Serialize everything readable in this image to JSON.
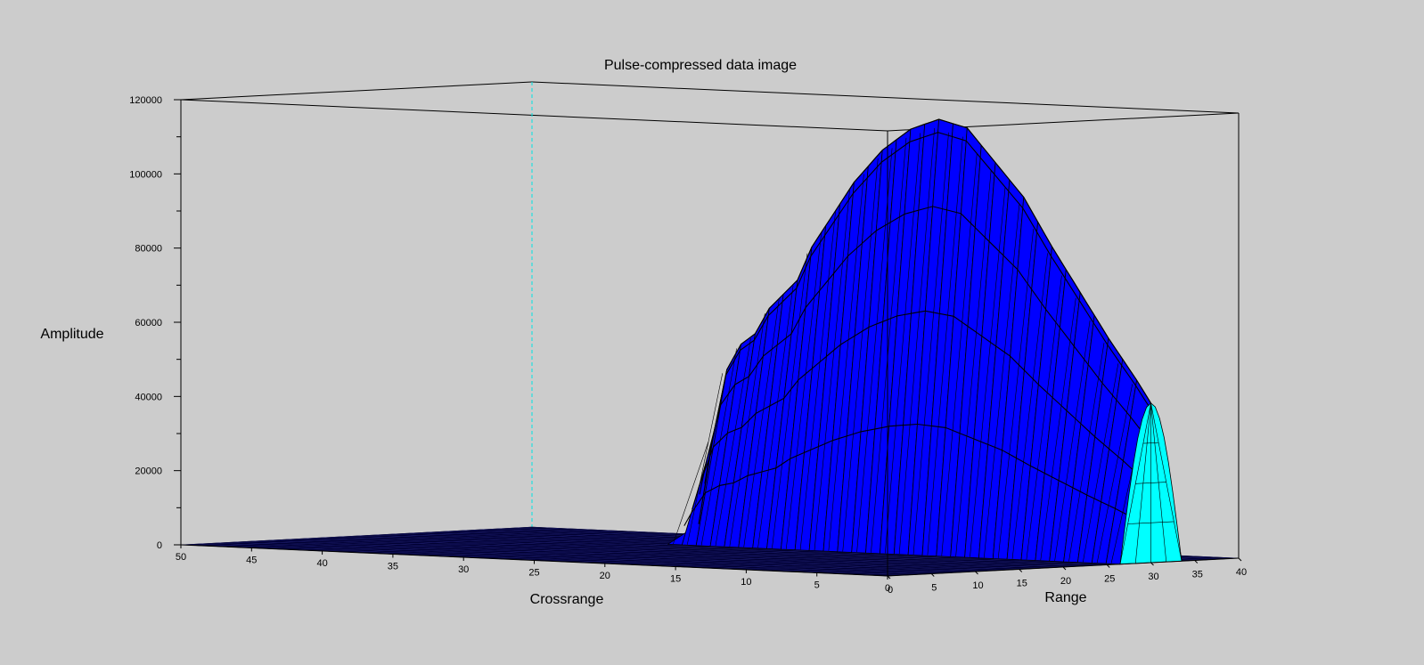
{
  "chart_data": {
    "type": "surface3d",
    "title": "Pulse-compressed data image",
    "zlabel": "Amplitude",
    "xlabel": "Crossrange",
    "ylabel": "Range",
    "zlim": [
      0,
      120000
    ],
    "z_ticks": [
      0,
      20000,
      40000,
      60000,
      80000,
      100000,
      120000
    ],
    "z_tick_labels": [
      "0",
      "20000",
      "40000",
      "60000",
      "80000",
      "100000",
      "120000"
    ],
    "crossrange_lim": [
      0,
      50
    ],
    "crossrange_ticks": [
      50,
      45,
      40,
      35,
      30,
      25,
      20,
      15,
      10,
      5,
      0
    ],
    "crossrange_tick_labels": [
      "50",
      "45",
      "40",
      "35",
      "30",
      "25",
      "20",
      "15",
      "10",
      "5",
      "0"
    ],
    "range_lim": [
      0,
      40
    ],
    "range_ticks": [
      0,
      5,
      10,
      15,
      20,
      25,
      30,
      35,
      40
    ],
    "range_tick_labels": [
      "0",
      "5",
      "10",
      "15",
      "20",
      "25",
      "30",
      "35",
      "40"
    ],
    "surface": {
      "description_values": "ridge along range, nonzero for crossrange 0..32",
      "peak_amplitude": 117000,
      "peak_crossrange": 15,
      "ridge_edge_amplitude_crossrange_0": 43000,
      "support_crossrange": [
        0,
        32
      ],
      "ridge_range_center": 30,
      "ridge_range_halfwidth": 3.5,
      "front_profile": [
        {
          "crossrange": 32,
          "amplitude": 5000
        },
        {
          "crossrange": 31,
          "amplitude": 28000
        },
        {
          "crossrange": 30,
          "amplitude": 47000
        },
        {
          "crossrange": 29,
          "amplitude": 54000
        },
        {
          "crossrange": 28,
          "amplitude": 57000
        },
        {
          "crossrange": 27,
          "amplitude": 64000
        },
        {
          "crossrange": 25,
          "amplitude": 72000
        },
        {
          "crossrange": 24,
          "amplitude": 81000
        },
        {
          "crossrange": 22,
          "amplitude": 93000
        },
        {
          "crossrange": 21,
          "amplitude": 99000
        },
        {
          "crossrange": 19,
          "amplitude": 108000
        },
        {
          "crossrange": 17,
          "amplitude": 114000
        },
        {
          "crossrange": 15,
          "amplitude": 117000
        },
        {
          "crossrange": 13,
          "amplitude": 115000
        },
        {
          "crossrange": 11,
          "amplitude": 106000
        },
        {
          "crossrange": 9,
          "amplitude": 97000
        },
        {
          "crossrange": 7,
          "amplitude": 84000
        },
        {
          "crossrange": 5,
          "amplitude": 72000
        },
        {
          "crossrange": 3,
          "amplitude": 60000
        },
        {
          "crossrange": 1,
          "amplitude": 49000
        },
        {
          "crossrange": 0,
          "amplitude": 43000
        }
      ],
      "colors": {
        "front_face": "#0000ff",
        "end_face": "#00ffff",
        "floor": "#000033",
        "edges": "#000000"
      }
    }
  }
}
